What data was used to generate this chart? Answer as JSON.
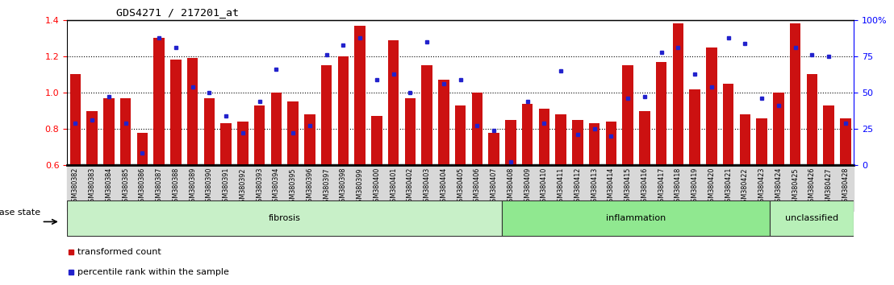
{
  "title": "GDS4271 / 217201_at",
  "categories": [
    "GSM380382",
    "GSM380383",
    "GSM380384",
    "GSM380385",
    "GSM380386",
    "GSM380387",
    "GSM380388",
    "GSM380389",
    "GSM380390",
    "GSM380391",
    "GSM380392",
    "GSM380393",
    "GSM380394",
    "GSM380395",
    "GSM380396",
    "GSM380397",
    "GSM380398",
    "GSM380399",
    "GSM380400",
    "GSM380401",
    "GSM380402",
    "GSM380403",
    "GSM380404",
    "GSM380405",
    "GSM380406",
    "GSM380407",
    "GSM380408",
    "GSM380409",
    "GSM380410",
    "GSM380411",
    "GSM380412",
    "GSM380413",
    "GSM380414",
    "GSM380415",
    "GSM380416",
    "GSM380417",
    "GSM380418",
    "GSM380419",
    "GSM380420",
    "GSM380421",
    "GSM380422",
    "GSM380423",
    "GSM380424",
    "GSM380425",
    "GSM380426",
    "GSM380427",
    "GSM380428"
  ],
  "bar_values": [
    1.1,
    0.9,
    0.97,
    0.97,
    0.78,
    1.3,
    1.18,
    1.19,
    0.97,
    0.83,
    0.84,
    0.93,
    1.0,
    0.95,
    0.88,
    1.15,
    1.2,
    1.37,
    0.87,
    1.29,
    0.97,
    1.15,
    1.07,
    0.93,
    1.0,
    0.78,
    0.85,
    0.94,
    0.91,
    0.88,
    0.85,
    0.83,
    0.84,
    1.15,
    0.9,
    1.17,
    1.38,
    1.02,
    1.25,
    1.05,
    0.88,
    0.86,
    1.0,
    1.38,
    1.1,
    0.93,
    0.86
  ],
  "percentile_values": [
    0.83,
    0.85,
    0.98,
    0.83,
    0.67,
    1.3,
    1.25,
    1.03,
    1.0,
    0.87,
    0.78,
    0.95,
    1.13,
    0.78,
    0.82,
    1.21,
    1.26,
    1.3,
    1.07,
    1.1,
    1.0,
    1.28,
    1.05,
    1.07,
    0.82,
    0.79,
    0.62,
    0.95,
    0.83,
    1.12,
    0.77,
    0.8,
    0.76,
    0.97,
    0.98,
    1.22,
    1.25,
    1.1,
    1.03,
    1.3,
    1.27,
    0.97,
    0.93,
    1.25,
    1.21,
    1.2,
    0.83
  ],
  "groups": [
    {
      "label": "fibrosis",
      "start": 0,
      "end": 26,
      "color": "#c8f0c8"
    },
    {
      "label": "inflammation",
      "start": 26,
      "end": 42,
      "color": "#90e890"
    },
    {
      "label": "unclassified",
      "start": 42,
      "end": 47,
      "color": "#b8f0b8"
    }
  ],
  "ylim": [
    0.6,
    1.4
  ],
  "yticks_left": [
    0.6,
    0.8,
    1.0,
    1.2,
    1.4
  ],
  "yticks_right_pct": [
    0,
    25,
    50,
    75,
    100
  ],
  "ytick_right_labels": [
    "0",
    "25",
    "50",
    "75",
    "100%"
  ],
  "hlines": [
    0.8,
    1.0,
    1.2
  ],
  "bar_color": "#cc1111",
  "dot_color": "#2222cc",
  "bar_width": 0.65,
  "legend_items": [
    "transformed count",
    "percentile rank within the sample"
  ],
  "disease_state_label": "disease state"
}
